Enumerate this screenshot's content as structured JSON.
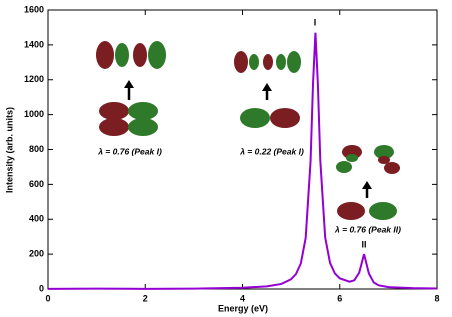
{
  "chart_data": {
    "type": "line",
    "xlabel": "Energy (eV)",
    "ylabel": "Intensity (arb. units)",
    "x": [
      0,
      1,
      2,
      3,
      4,
      4.5,
      4.8,
      5,
      5.1,
      5.2,
      5.3,
      5.4,
      5.45,
      5.5,
      5.55,
      5.6,
      5.7,
      5.8,
      5.9,
      6,
      6.2,
      6.3,
      6.4,
      6.5,
      6.6,
      6.7,
      6.8,
      7,
      7.5,
      8
    ],
    "values": [
      1,
      2,
      1,
      2,
      7,
      15,
      29,
      56,
      86,
      147,
      294,
      735,
      1176,
      1470,
      1177,
      737,
      296,
      150,
      89,
      61,
      42,
      50,
      94,
      200,
      88,
      37,
      21,
      11,
      5,
      3
    ],
    "color": "#9400d3",
    "xlim": [
      0,
      8
    ],
    "xticks": [
      0,
      2,
      4,
      6,
      8
    ],
    "ylim": [
      0,
      1600
    ],
    "yticks": [
      0,
      200,
      400,
      600,
      800,
      1000,
      1200,
      1400,
      1600
    ],
    "annotations": [
      "I",
      "II",
      "λ = 0.76 (Peak I)",
      "λ = 0.22 (Peak I)",
      "λ = 0.76 (Peak II)"
    ]
  }
}
